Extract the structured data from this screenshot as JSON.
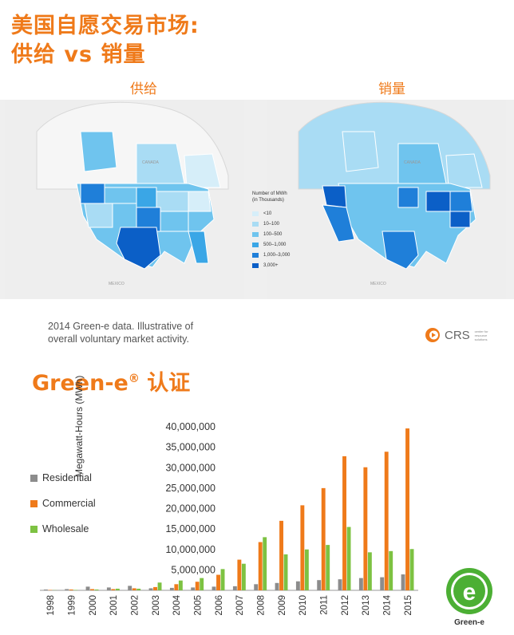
{
  "header": {
    "line1": "美国自愿交易市场:",
    "line2": "供给 vs 销量"
  },
  "maps": {
    "left_label": "供给",
    "right_label": "销量",
    "region_labels": {
      "canada": "CANADA",
      "mexico": "MEXICO"
    },
    "legend_title_1": "Number of MWh",
    "legend_title_2": "(in Thousands)",
    "legend": [
      {
        "label": "<10",
        "color": "#d6eef9"
      },
      {
        "label": "10–100",
        "color": "#a9dcf4"
      },
      {
        "label": "100–500",
        "color": "#6fc4ee"
      },
      {
        "label": "500–1,000",
        "color": "#3aa6e6"
      },
      {
        "label": "1,000–3,000",
        "color": "#1f7fd9"
      },
      {
        "label": "3,000+",
        "color": "#0b5fc7"
      }
    ]
  },
  "note": {
    "line1": "2014 Green-e data.  Illustrative of",
    "line2": "overall voluntary market activity."
  },
  "crs": {
    "name": "CRS",
    "tag1": "center for",
    "tag2": "resource",
    "tag3": "solutions"
  },
  "section_title": "Green-e",
  "section_title_mark": "®",
  "section_title_suffix": " 认证",
  "colors": {
    "accent": "#ef7a1a",
    "residential": "#8c8c8c",
    "commercial": "#ef7a1a",
    "wholesale": "#7dc242"
  },
  "logo": {
    "caption": "Green-e",
    "glyph": "e"
  },
  "chart_data": {
    "type": "bar",
    "ylabel": "Megawatt-Hours (MWh)",
    "xlabel": "",
    "ylim": [
      0,
      40000000
    ],
    "yticks": [
      5000000,
      10000000,
      15000000,
      20000000,
      25000000,
      30000000,
      35000000,
      40000000
    ],
    "ytick_labels": [
      "5,000,000",
      "10,000,000",
      "15,000,000",
      "20,000,000",
      "25,000,000",
      "30,000,000",
      "35,000,000",
      "40,000,000"
    ],
    "categories": [
      "1998",
      "1999",
      "2000",
      "2001",
      "2002",
      "2003",
      "2004",
      "2005",
      "2006",
      "2007",
      "2008",
      "2009",
      "2010",
      "2011",
      "2012",
      "2013",
      "2014",
      "2015"
    ],
    "series": [
      {
        "name": "Residential",
        "values": [
          200000,
          300000,
          900000,
          700000,
          1100000,
          500000,
          600000,
          700000,
          900000,
          1000000,
          1500000,
          1800000,
          2200000,
          2500000,
          2700000,
          3000000,
          3200000,
          3900000
        ]
      },
      {
        "name": "Commercial",
        "values": [
          100000,
          200000,
          300000,
          300000,
          500000,
          800000,
          1500000,
          2100000,
          3800000,
          7500000,
          11800000,
          17000000,
          20800000,
          25000000,
          32800000,
          30100000,
          33900000,
          39600000
        ]
      },
      {
        "name": "Wholesale",
        "values": [
          50000,
          100000,
          200000,
          400000,
          400000,
          1900000,
          2400000,
          3000000,
          5200000,
          6500000,
          13000000,
          8800000,
          10000000,
          11100000,
          15500000,
          9300000,
          9600000,
          10100000
        ]
      }
    ]
  }
}
